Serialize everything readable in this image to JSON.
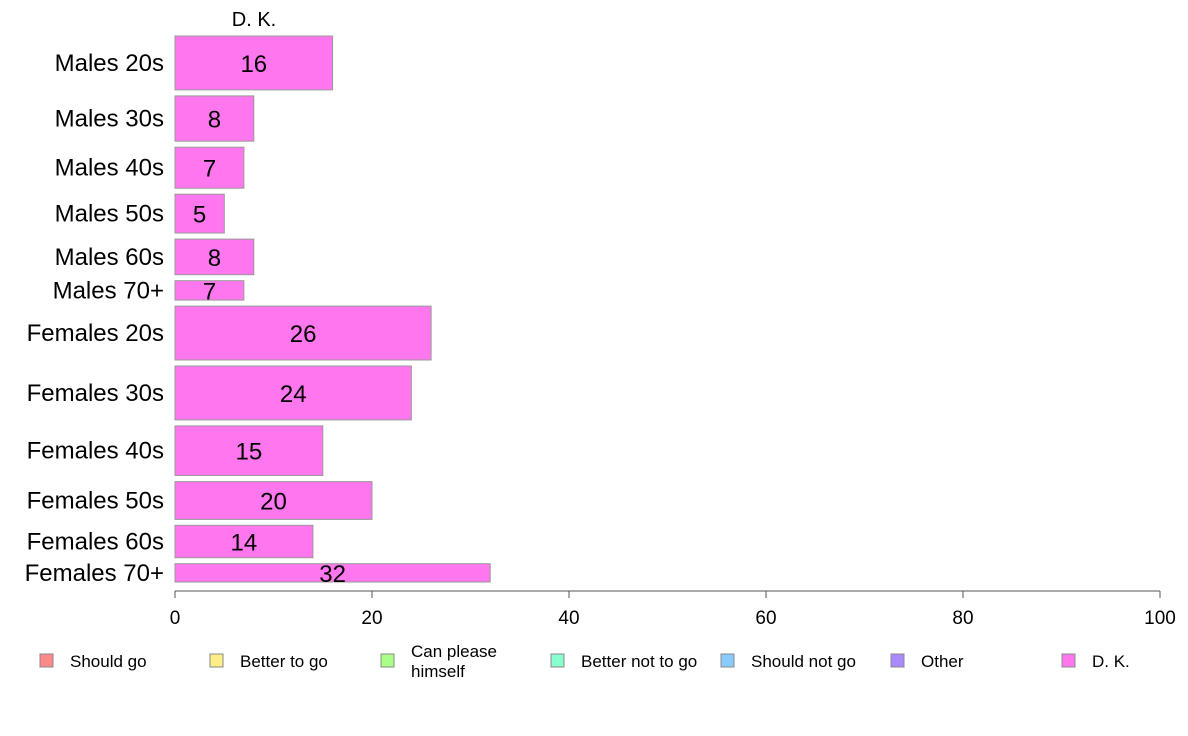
{
  "chart_data": {
    "type": "bar",
    "orientation": "horizontal",
    "panel_title": "D. K.",
    "categories": [
      "Males 20s",
      "Males 30s",
      "Males 40s",
      "Males 50s",
      "Males 60s",
      "Males 70+",
      "Females 20s",
      "Females 30s",
      "Females 40s",
      "Females 50s",
      "Females 60s",
      "Females 70+"
    ],
    "values": [
      16,
      8,
      7,
      5,
      8,
      7,
      26,
      24,
      15,
      20,
      14,
      32
    ],
    "data_labels": [
      "16",
      "8",
      "7",
      "5",
      "8",
      "7",
      "26",
      "24",
      "15",
      "20",
      "14",
      "32"
    ],
    "bar_weights": [
      50,
      42,
      38,
      36,
      33,
      18,
      50,
      50,
      46,
      35,
      30,
      17
    ],
    "xlim": [
      0,
      100
    ],
    "x_ticks": [
      "0",
      "20",
      "40",
      "60",
      "80",
      "100"
    ],
    "x_tick_values": [
      0,
      20,
      40,
      60,
      80,
      100
    ],
    "grid": false,
    "bar_color": "#ff77ee",
    "legend_position": "bottom",
    "legend": [
      {
        "label": "Should go",
        "color": "#ff8888"
      },
      {
        "label": "Better to go",
        "color": "#ffee88"
      },
      {
        "label": "Can please himself",
        "color": "#aaff88"
      },
      {
        "label": "Better not to go",
        "color": "#88ffcc"
      },
      {
        "label": "Should not go",
        "color": "#88ccff"
      },
      {
        "label": "Other",
        "color": "#aa88ff"
      },
      {
        "label": "D. K.",
        "color": "#ff77ee"
      }
    ]
  }
}
